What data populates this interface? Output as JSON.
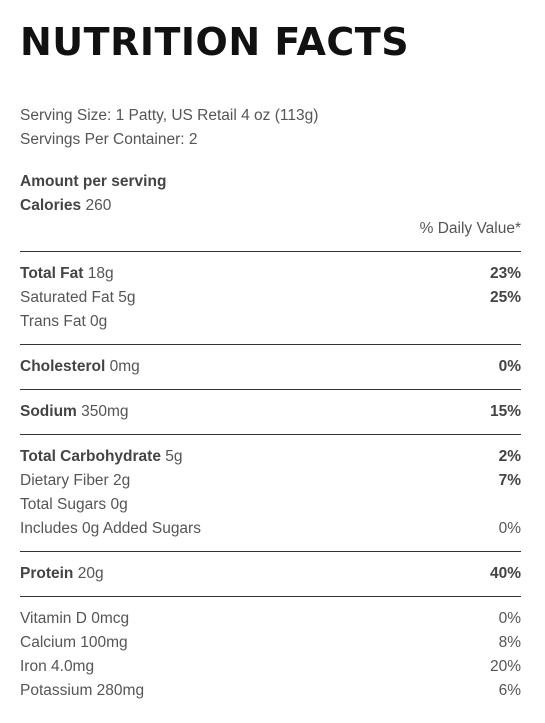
{
  "title": "NUTRITION FACTS",
  "serving": {
    "size_label": "Serving Size: 1 Patty, US Retail 4 oz (113g)",
    "per_container_label": "Servings Per Container: 2"
  },
  "amount_header": "Amount per serving",
  "calories": {
    "label": "Calories",
    "value": "260"
  },
  "daily_value_header": "% Daily Value*",
  "nutrients": {
    "total_fat": {
      "label": "Total Fat",
      "amount": "18g",
      "dv": "23%"
    },
    "saturated_fat": {
      "label": "Saturated Fat 5g",
      "dv": "25%"
    },
    "trans_fat": {
      "label": "Trans Fat 0g",
      "dv": ""
    },
    "cholesterol": {
      "label": "Cholesterol",
      "amount": "0mg",
      "dv": "0%"
    },
    "sodium": {
      "label": "Sodium",
      "amount": "350mg",
      "dv": "15%"
    },
    "total_carb": {
      "label": "Total Carbohydrate",
      "amount": "5g",
      "dv": "2%"
    },
    "dietary_fiber": {
      "label": "Dietary Fiber 2g",
      "dv": "7%"
    },
    "total_sugars": {
      "label": "Total Sugars 0g",
      "dv": ""
    },
    "added_sugars": {
      "label": "Includes 0g Added Sugars",
      "dv": "0%"
    },
    "protein": {
      "label": "Protein",
      "amount": "20g",
      "dv": "40%"
    }
  },
  "vitamins": {
    "vitamin_d": {
      "label": "Vitamin D 0mcg",
      "dv": "0%"
    },
    "calcium": {
      "label": "Calcium 100mg",
      "dv": "8%"
    },
    "iron": {
      "label": "Iron 4.0mg",
      "dv": "20%"
    },
    "potassium": {
      "label": "Potassium 280mg",
      "dv": "6%"
    }
  }
}
